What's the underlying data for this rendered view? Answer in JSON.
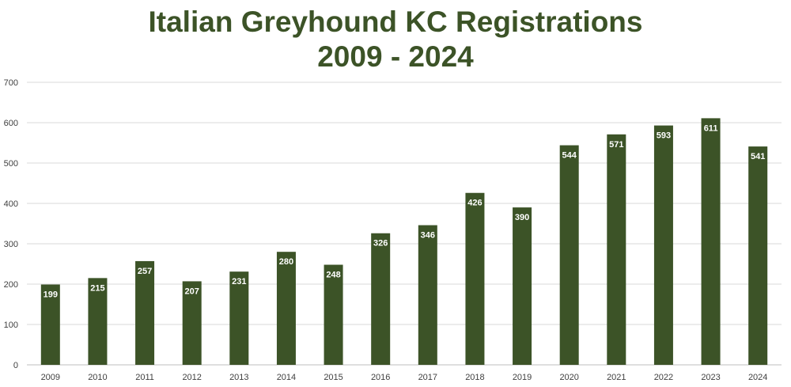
{
  "chart_data": {
    "type": "bar",
    "title": [
      "Italian Greyhound KC Registrations",
      "2009 - 2024"
    ],
    "xlabel": "",
    "ylabel": "",
    "categories": [
      "2009",
      "2010",
      "2011",
      "2012",
      "2013",
      "2014",
      "2015",
      "2016",
      "2017",
      "2018",
      "2019",
      "2020",
      "2021",
      "2022",
      "2023",
      "2024"
    ],
    "values": [
      199,
      215,
      257,
      207,
      231,
      280,
      248,
      326,
      346,
      426,
      390,
      544,
      571,
      593,
      611,
      541
    ],
    "data_labels": [
      "199",
      "215",
      "257",
      "207",
      "231",
      "280",
      "248",
      "326",
      "346",
      "426",
      "390",
      "544",
      "571",
      "593",
      "611",
      "541"
    ],
    "ylim": [
      0,
      700
    ],
    "yticks": [
      "0",
      "100",
      "200",
      "300",
      "400",
      "500",
      "600",
      "700"
    ],
    "grid": true,
    "legend": "none",
    "bar_color": "#3c5327",
    "title_color": "#3c5327",
    "gridline_color": "#d9d9d9"
  }
}
